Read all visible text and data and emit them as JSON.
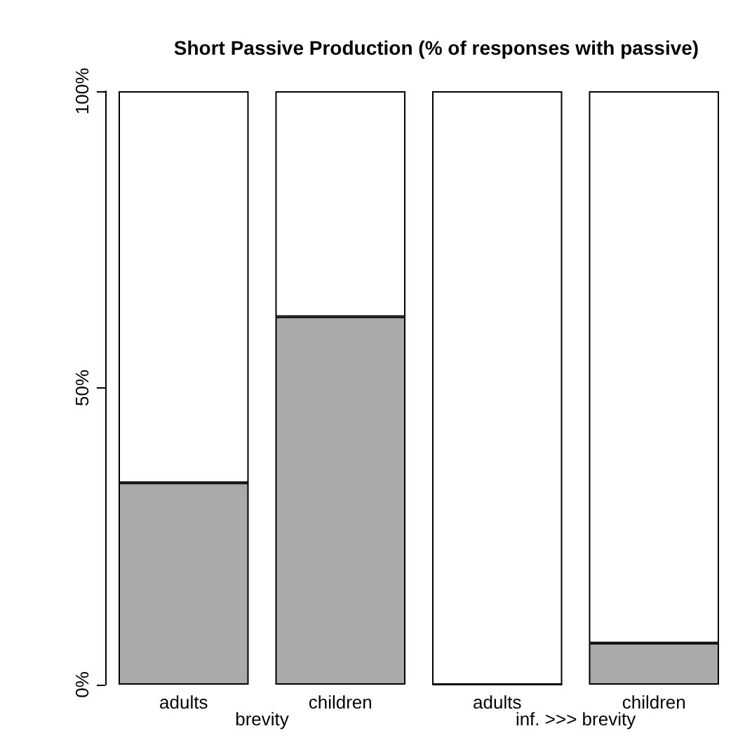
{
  "chart_data": {
    "type": "bar",
    "title": "Short Passive Production (% of responses with passive)",
    "categories": [
      "adults",
      "children",
      "adults",
      "children"
    ],
    "stacked": true,
    "series": [
      {
        "color": "#aaaaaa",
        "values": [
          34,
          62,
          0,
          7
        ]
      },
      {
        "color": "#ffffff",
        "values": [
          66,
          38,
          100,
          93
        ]
      }
    ],
    "ylim": [
      0,
      100
    ],
    "yticks": [
      {
        "value": 0,
        "label": "0%"
      },
      {
        "value": 50,
        "label": "50%"
      },
      {
        "value": 100,
        "label": "100%"
      }
    ],
    "annotations": [
      "brevity",
      "inf. >>> brevity"
    ]
  }
}
